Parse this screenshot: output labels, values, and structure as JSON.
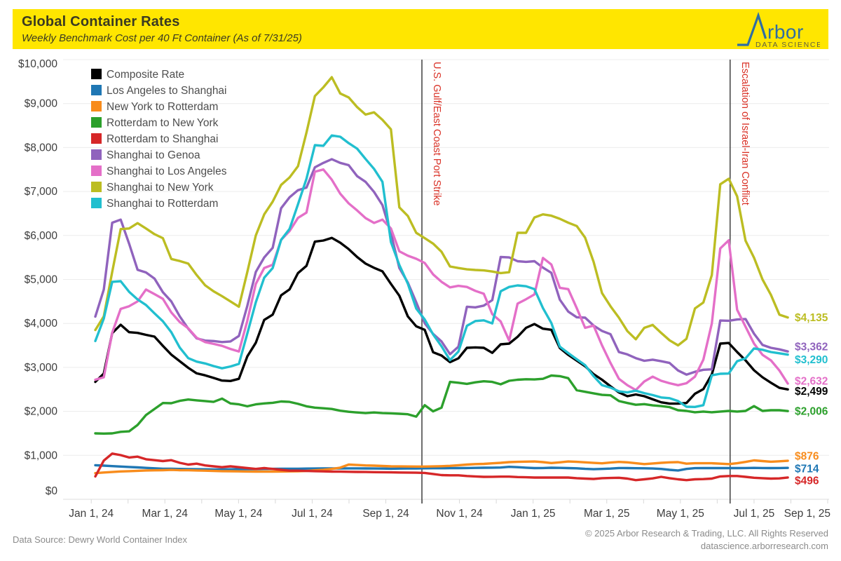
{
  "header": {
    "title": "Global Container Rates",
    "subtitle": "Weekly Benchmark Cost per 40 Ft Container (As of 7/31/25)"
  },
  "logo": {
    "brand_rest": "rbor",
    "tagline": "DATA SCIENCE",
    "mark_color": "#2e6da3",
    "tagline_color": "#5f5f40",
    "background": "#ffe600"
  },
  "footer": {
    "source": "Data Source: Dewry World Container Index",
    "copyright": "© 2025 Arbor Research & Trading, LLC. All Rights Reserved",
    "website": "datascience.arborresearch.com"
  },
  "chart_data": {
    "type": "line",
    "title": "Global Container Rates",
    "subtitle": "Weekly Benchmark Cost per 40 Ft Container (As of 7/31/25)",
    "ylabel": "",
    "xlabel": "",
    "ylim": [
      0,
      10000
    ],
    "y_tick_step": 1000,
    "y_tick_labels": [
      "$0",
      "$1,000",
      "$2,000",
      "$3,000",
      "$4,000",
      "$5,000",
      "$6,000",
      "$7,000",
      "$8,000",
      "$9,000",
      "$10,000"
    ],
    "x_tick_labels": [
      "Jan 1, 24",
      "Mar 1, 24",
      "May 1, 24",
      "Jul 1, 24",
      "Sep 1, 24",
      "Nov 1, 24",
      "Jan 1, 25",
      "Mar 1, 25",
      "May 1, 25",
      "Jul 1, 25",
      "Sep 1, 25"
    ],
    "x_minor_tick": "monthly",
    "x_months_span": 20,
    "weekly_points": 83,
    "start_date": "2024-01-04",
    "end_date": "2025-07-31",
    "grid": "horizontal",
    "legend_position": "top-left-inside",
    "annotations": [
      {
        "label": "U.S. Gulf/East Coast Port Strike",
        "date": "2024-10-01",
        "month_offset": 8.98,
        "color": "#d93025"
      },
      {
        "label": "Escalation of Israel-Iran Conflict",
        "date": "2025-06-13",
        "month_offset": 17.35,
        "color": "#d93025"
      }
    ],
    "series": [
      {
        "name": "Composite Rate",
        "color": "#000000",
        "end_label": "$2,499",
        "end_label_nudge": 2,
        "values": [
          2670,
          2860,
          3780,
          3970,
          3800,
          3785,
          3740,
          3700,
          3490,
          3290,
          3140,
          2990,
          2865,
          2820,
          2760,
          2700,
          2690,
          2740,
          3250,
          3560,
          4080,
          4200,
          4640,
          4775,
          5145,
          5310,
          5860,
          5885,
          5945,
          5835,
          5690,
          5510,
          5360,
          5265,
          5185,
          4900,
          4630,
          4160,
          3935,
          3855,
          3345,
          3270,
          3120,
          3205,
          3445,
          3455,
          3445,
          3330,
          3525,
          3540,
          3695,
          3900,
          3985,
          3880,
          3855,
          3440,
          3285,
          3155,
          3025,
          2845,
          2720,
          2570,
          2430,
          2345,
          2385,
          2345,
          2275,
          2205,
          2175,
          2175,
          2190,
          2400,
          2505,
          2840,
          3540,
          3555,
          3350,
          3160,
          2935,
          2775,
          2650,
          2535,
          2499
        ]
      },
      {
        "name": "Los Angeles to Shanghai",
        "color": "#1f77b4",
        "end_label": "$714",
        "end_label_nudge": 1,
        "values": [
          775,
          765,
          755,
          745,
          735,
          725,
          715,
          705,
          695,
          695,
          690,
          688,
          685,
          683,
          680,
          680,
          682,
          684,
          686,
          688,
          690,
          692,
          694,
          695,
          696,
          698,
          700,
          701,
          702,
          702,
          703,
          703,
          702,
          700,
          698,
          696,
          698,
          700,
          702,
          705,
          706,
          707,
          708,
          710,
          712,
          715,
          718,
          720,
          722,
          738,
          730,
          720,
          710,
          712,
          718,
          715,
          710,
          705,
          692,
          685,
          690,
          698,
          712,
          710,
          707,
          705,
          700,
          690,
          670,
          655,
          690,
          708,
          710,
          710,
          710,
          710,
          710,
          712,
          714,
          712,
          710,
          711,
          714
        ]
      },
      {
        "name": "New York to Rotterdam",
        "color": "#f88c1c",
        "end_label": "$876",
        "end_label_nudge": -7,
        "values": [
          595,
          610,
          620,
          633,
          640,
          648,
          655,
          658,
          662,
          668,
          662,
          660,
          655,
          650,
          645,
          640,
          638,
          634,
          632,
          630,
          630,
          630,
          632,
          634,
          638,
          645,
          658,
          670,
          690,
          720,
          790,
          780,
          770,
          766,
          758,
          750,
          748,
          746,
          745,
          745,
          748,
          752,
          760,
          775,
          790,
          800,
          805,
          818,
          830,
          845,
          852,
          856,
          860,
          845,
          825,
          840,
          860,
          852,
          840,
          828,
          818,
          835,
          850,
          840,
          820,
          800,
          815,
          830,
          840,
          845,
          810,
          820,
          820,
          820,
          810,
          800,
          820,
          850,
          885,
          870,
          855,
          865,
          876
        ]
      },
      {
        "name": "Rotterdam to New York",
        "color": "#2ca02c",
        "end_label": "$2,006",
        "end_label_nudge": 0,
        "values": [
          1500,
          1495,
          1500,
          1535,
          1545,
          1690,
          1915,
          2055,
          2190,
          2185,
          2240,
          2270,
          2250,
          2235,
          2215,
          2290,
          2180,
          2160,
          2115,
          2160,
          2180,
          2195,
          2225,
          2215,
          2170,
          2115,
          2085,
          2070,
          2055,
          2015,
          1990,
          1975,
          1960,
          1975,
          1960,
          1955,
          1945,
          1935,
          1880,
          2140,
          2000,
          2085,
          2670,
          2650,
          2625,
          2660,
          2685,
          2670,
          2615,
          2695,
          2720,
          2730,
          2725,
          2740,
          2815,
          2800,
          2755,
          2480,
          2445,
          2410,
          2375,
          2365,
          2235,
          2190,
          2150,
          2165,
          2135,
          2120,
          2095,
          2025,
          2010,
          1980,
          1995,
          1980,
          1995,
          2010,
          1995,
          2010,
          2120,
          2010,
          2025,
          2025,
          2006
        ]
      },
      {
        "name": "Rotterdam to Shanghai",
        "color": "#d62728",
        "end_label": "$496",
        "end_label_nudge": 4,
        "values": [
          520,
          880,
          1040,
          1005,
          950,
          970,
          910,
          890,
          870,
          890,
          830,
          790,
          810,
          770,
          750,
          730,
          750,
          730,
          710,
          690,
          710,
          690,
          670,
          650,
          650,
          645,
          640,
          635,
          630,
          628,
          625,
          622,
          620,
          618,
          615,
          612,
          610,
          608,
          605,
          600,
          575,
          550,
          545,
          545,
          530,
          520,
          510,
          512,
          515,
          515,
          505,
          500,
          495,
          495,
          495,
          495,
          495,
          480,
          470,
          462,
          480,
          485,
          490,
          470,
          435,
          455,
          475,
          510,
          480,
          455,
          435,
          455,
          460,
          470,
          520,
          530,
          530,
          510,
          490,
          480,
          470,
          475,
          496
        ]
      },
      {
        "name": "Shanghai to Genoa",
        "color": "#9063bd",
        "end_label": "$3,362",
        "end_label_nudge": -7,
        "values": [
          4155,
          4770,
          6290,
          6360,
          5815,
          5220,
          5160,
          5020,
          4710,
          4500,
          4160,
          3880,
          3660,
          3610,
          3600,
          3575,
          3590,
          3715,
          4400,
          5170,
          5500,
          5720,
          6620,
          6870,
          7030,
          7090,
          7550,
          7650,
          7735,
          7650,
          7600,
          7350,
          7220,
          6990,
          6690,
          6050,
          5260,
          4930,
          4480,
          4005,
          3760,
          3590,
          3300,
          3470,
          4380,
          4365,
          4405,
          4530,
          5510,
          5500,
          5415,
          5400,
          5415,
          5270,
          5150,
          4540,
          4270,
          4140,
          4130,
          3950,
          3830,
          3755,
          3350,
          3295,
          3210,
          3150,
          3175,
          3140,
          3100,
          2930,
          2835,
          2900,
          2945,
          2955,
          4065,
          4060,
          4090,
          4100,
          3765,
          3510,
          3445,
          3410,
          3362
        ]
      },
      {
        "name": "Shanghai to Los Angeles",
        "color": "#e46fc8",
        "end_label": "$2,632",
        "end_label_nudge": -4,
        "values": [
          2719,
          2775,
          3790,
          4330,
          4390,
          4500,
          4770,
          4666,
          4560,
          4250,
          4030,
          3890,
          3675,
          3575,
          3535,
          3490,
          3420,
          3360,
          4060,
          4900,
          5260,
          5335,
          5900,
          6100,
          6400,
          6520,
          7450,
          7500,
          7270,
          6950,
          6730,
          6570,
          6395,
          6285,
          6360,
          6160,
          5640,
          5540,
          5470,
          5375,
          5115,
          4945,
          4820,
          4855,
          4830,
          4740,
          4675,
          4210,
          4045,
          3610,
          4450,
          4550,
          4660,
          5490,
          5340,
          4810,
          4780,
          4350,
          3900,
          3950,
          3500,
          3100,
          2740,
          2595,
          2485,
          2680,
          2790,
          2695,
          2640,
          2595,
          2640,
          2790,
          3175,
          4000,
          5705,
          5890,
          4310,
          3925,
          3540,
          3285,
          3160,
          2930,
          2632
        ]
      },
      {
        "name": "Shanghai to New York",
        "color": "#bcbd22",
        "end_label": "$4,135",
        "end_label_nudge": 0,
        "values": [
          3850,
          4160,
          5170,
          6145,
          6160,
          6280,
          6160,
          6030,
          5940,
          5465,
          5420,
          5360,
          5100,
          4870,
          4730,
          4620,
          4500,
          4380,
          5170,
          6000,
          6480,
          6770,
          7150,
          7320,
          7575,
          8340,
          9170,
          9370,
          9600,
          9230,
          9140,
          8920,
          8750,
          8800,
          8630,
          8415,
          6640,
          6445,
          6060,
          5940,
          5815,
          5630,
          5295,
          5260,
          5230,
          5215,
          5205,
          5180,
          5145,
          5165,
          6060,
          6060,
          6410,
          6480,
          6450,
          6380,
          6290,
          6215,
          5950,
          5400,
          4690,
          4390,
          4130,
          3825,
          3640,
          3900,
          3965,
          3785,
          3615,
          3500,
          3650,
          4340,
          4475,
          5100,
          7165,
          7290,
          6890,
          5880,
          5495,
          5000,
          4650,
          4200,
          4135
        ]
      },
      {
        "name": "Shanghai to Rotterdam",
        "color": "#21bfcf",
        "end_label": "$3,290",
        "end_label_nudge": 7,
        "values": [
          3600,
          4110,
          4945,
          4960,
          4720,
          4545,
          4420,
          4230,
          4050,
          3800,
          3450,
          3210,
          3130,
          3090,
          3030,
          2980,
          3020,
          3080,
          3770,
          4480,
          5040,
          5260,
          5900,
          6150,
          6710,
          7290,
          8055,
          8040,
          8275,
          8245,
          8100,
          7975,
          7740,
          7515,
          7220,
          5850,
          5330,
          4905,
          4340,
          4090,
          3750,
          3480,
          3165,
          3360,
          3945,
          4055,
          4070,
          4000,
          4730,
          4830,
          4865,
          4845,
          4780,
          4350,
          4010,
          3470,
          3325,
          3185,
          3050,
          2800,
          2595,
          2540,
          2455,
          2430,
          2470,
          2415,
          2370,
          2315,
          2300,
          2235,
          2105,
          2100,
          2140,
          2820,
          2855,
          2860,
          3140,
          3205,
          3430,
          3400,
          3350,
          3320,
          3290
        ]
      }
    ]
  }
}
